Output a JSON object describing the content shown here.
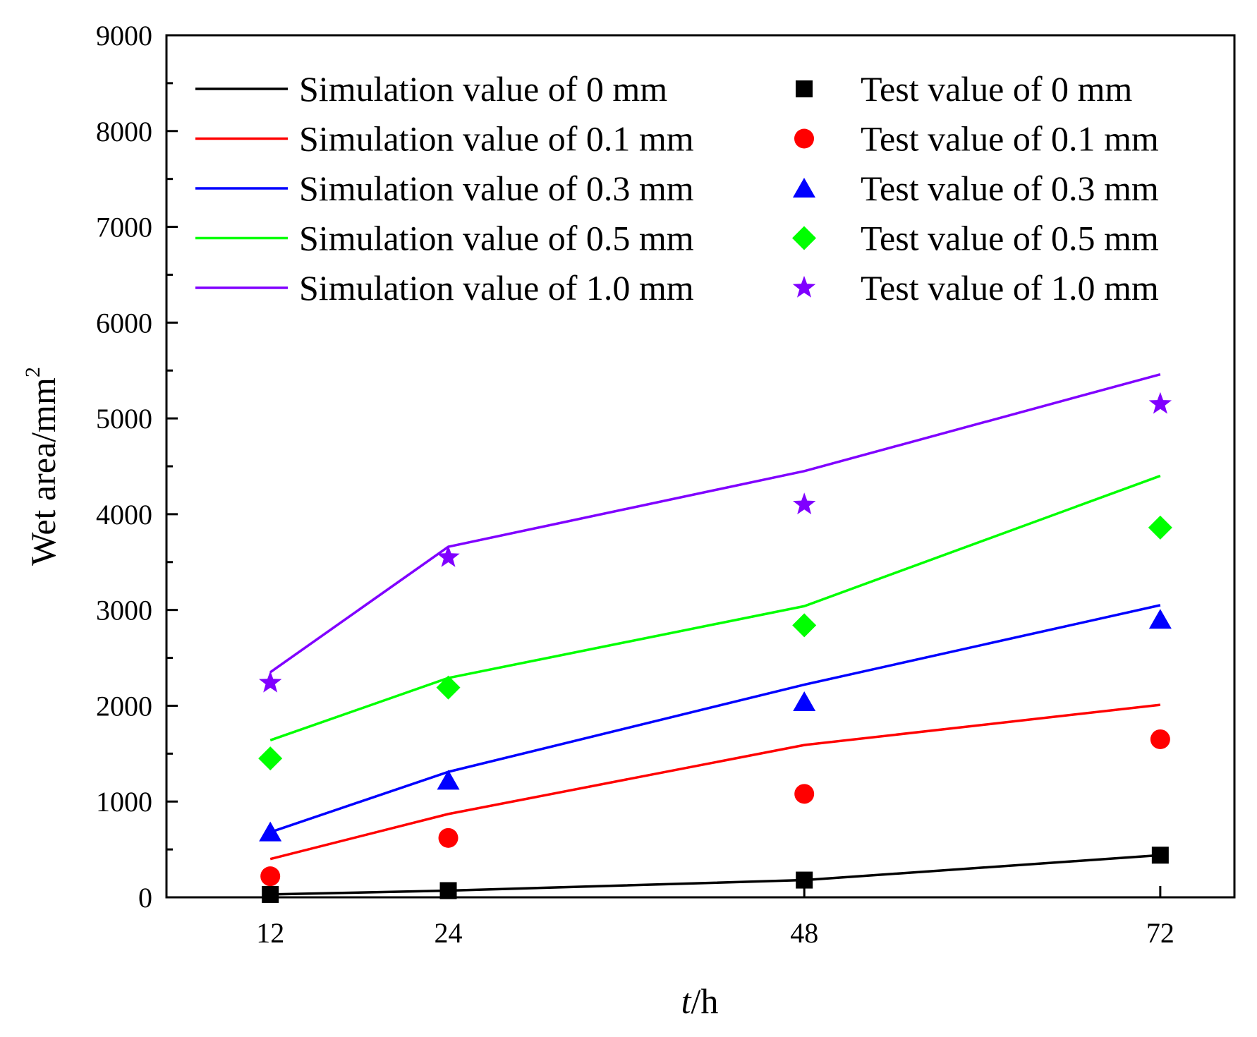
{
  "chart_data": {
    "type": "line",
    "title": "",
    "xlabel": "h",
    "xlabel_italic_prefix": "t",
    "xlabel_separator": "/",
    "ylabel": "Wet area/mm",
    "ylabel_superscript": "2",
    "x": [
      12,
      24,
      48,
      72
    ],
    "x_ticks": [
      "12",
      "24",
      "48",
      "72"
    ],
    "xlim": [
      5,
      77
    ],
    "ylim": [
      0,
      9000
    ],
    "y_ticks": [
      "0",
      "1000",
      "2000",
      "3000",
      "4000",
      "5000",
      "6000",
      "7000",
      "8000",
      "9000"
    ],
    "y_tick_values": [
      0,
      1000,
      2000,
      3000,
      4000,
      5000,
      6000,
      7000,
      8000,
      9000
    ],
    "legend_position": "top",
    "grid": false,
    "series": [
      {
        "name": "Simulation value of 0 mm",
        "kind": "line",
        "color": "#000000",
        "values": [
          30,
          70,
          180,
          440
        ]
      },
      {
        "name": "Simulation value of 0.1 mm",
        "kind": "line",
        "color": "#ff0000",
        "values": [
          400,
          870,
          1590,
          2010
        ]
      },
      {
        "name": "Simulation value of 0.3 mm",
        "kind": "line",
        "color": "#0000ff",
        "values": [
          680,
          1310,
          2220,
          3050
        ]
      },
      {
        "name": "Simulation value of 0.5 mm",
        "kind": "line",
        "color": "#00ff00",
        "values": [
          1640,
          2290,
          3040,
          4400
        ]
      },
      {
        "name": "Simulation value of 1.0 mm",
        "kind": "line",
        "color": "#8000ff",
        "values": [
          2350,
          3660,
          4450,
          5460
        ]
      },
      {
        "name": "Test value of 0 mm",
        "kind": "scatter",
        "marker": "square",
        "color": "#000000",
        "values": [
          30,
          70,
          180,
          440
        ]
      },
      {
        "name": "Test value of 0.1 mm",
        "kind": "scatter",
        "marker": "circle",
        "color": "#ff0000",
        "values": [
          220,
          620,
          1080,
          1650
        ]
      },
      {
        "name": "Test value of 0.3 mm",
        "kind": "scatter",
        "marker": "triangle",
        "color": "#0000ff",
        "values": [
          680,
          1220,
          2040,
          2900
        ]
      },
      {
        "name": "Test value of 0.5 mm",
        "kind": "scatter",
        "marker": "diamond",
        "color": "#00ff00",
        "values": [
          1450,
          2190,
          2840,
          3860
        ]
      },
      {
        "name": "Test value of 1.0 mm",
        "kind": "scatter",
        "marker": "star",
        "color": "#8000ff",
        "values": [
          2240,
          3550,
          4100,
          5150
        ]
      }
    ]
  }
}
